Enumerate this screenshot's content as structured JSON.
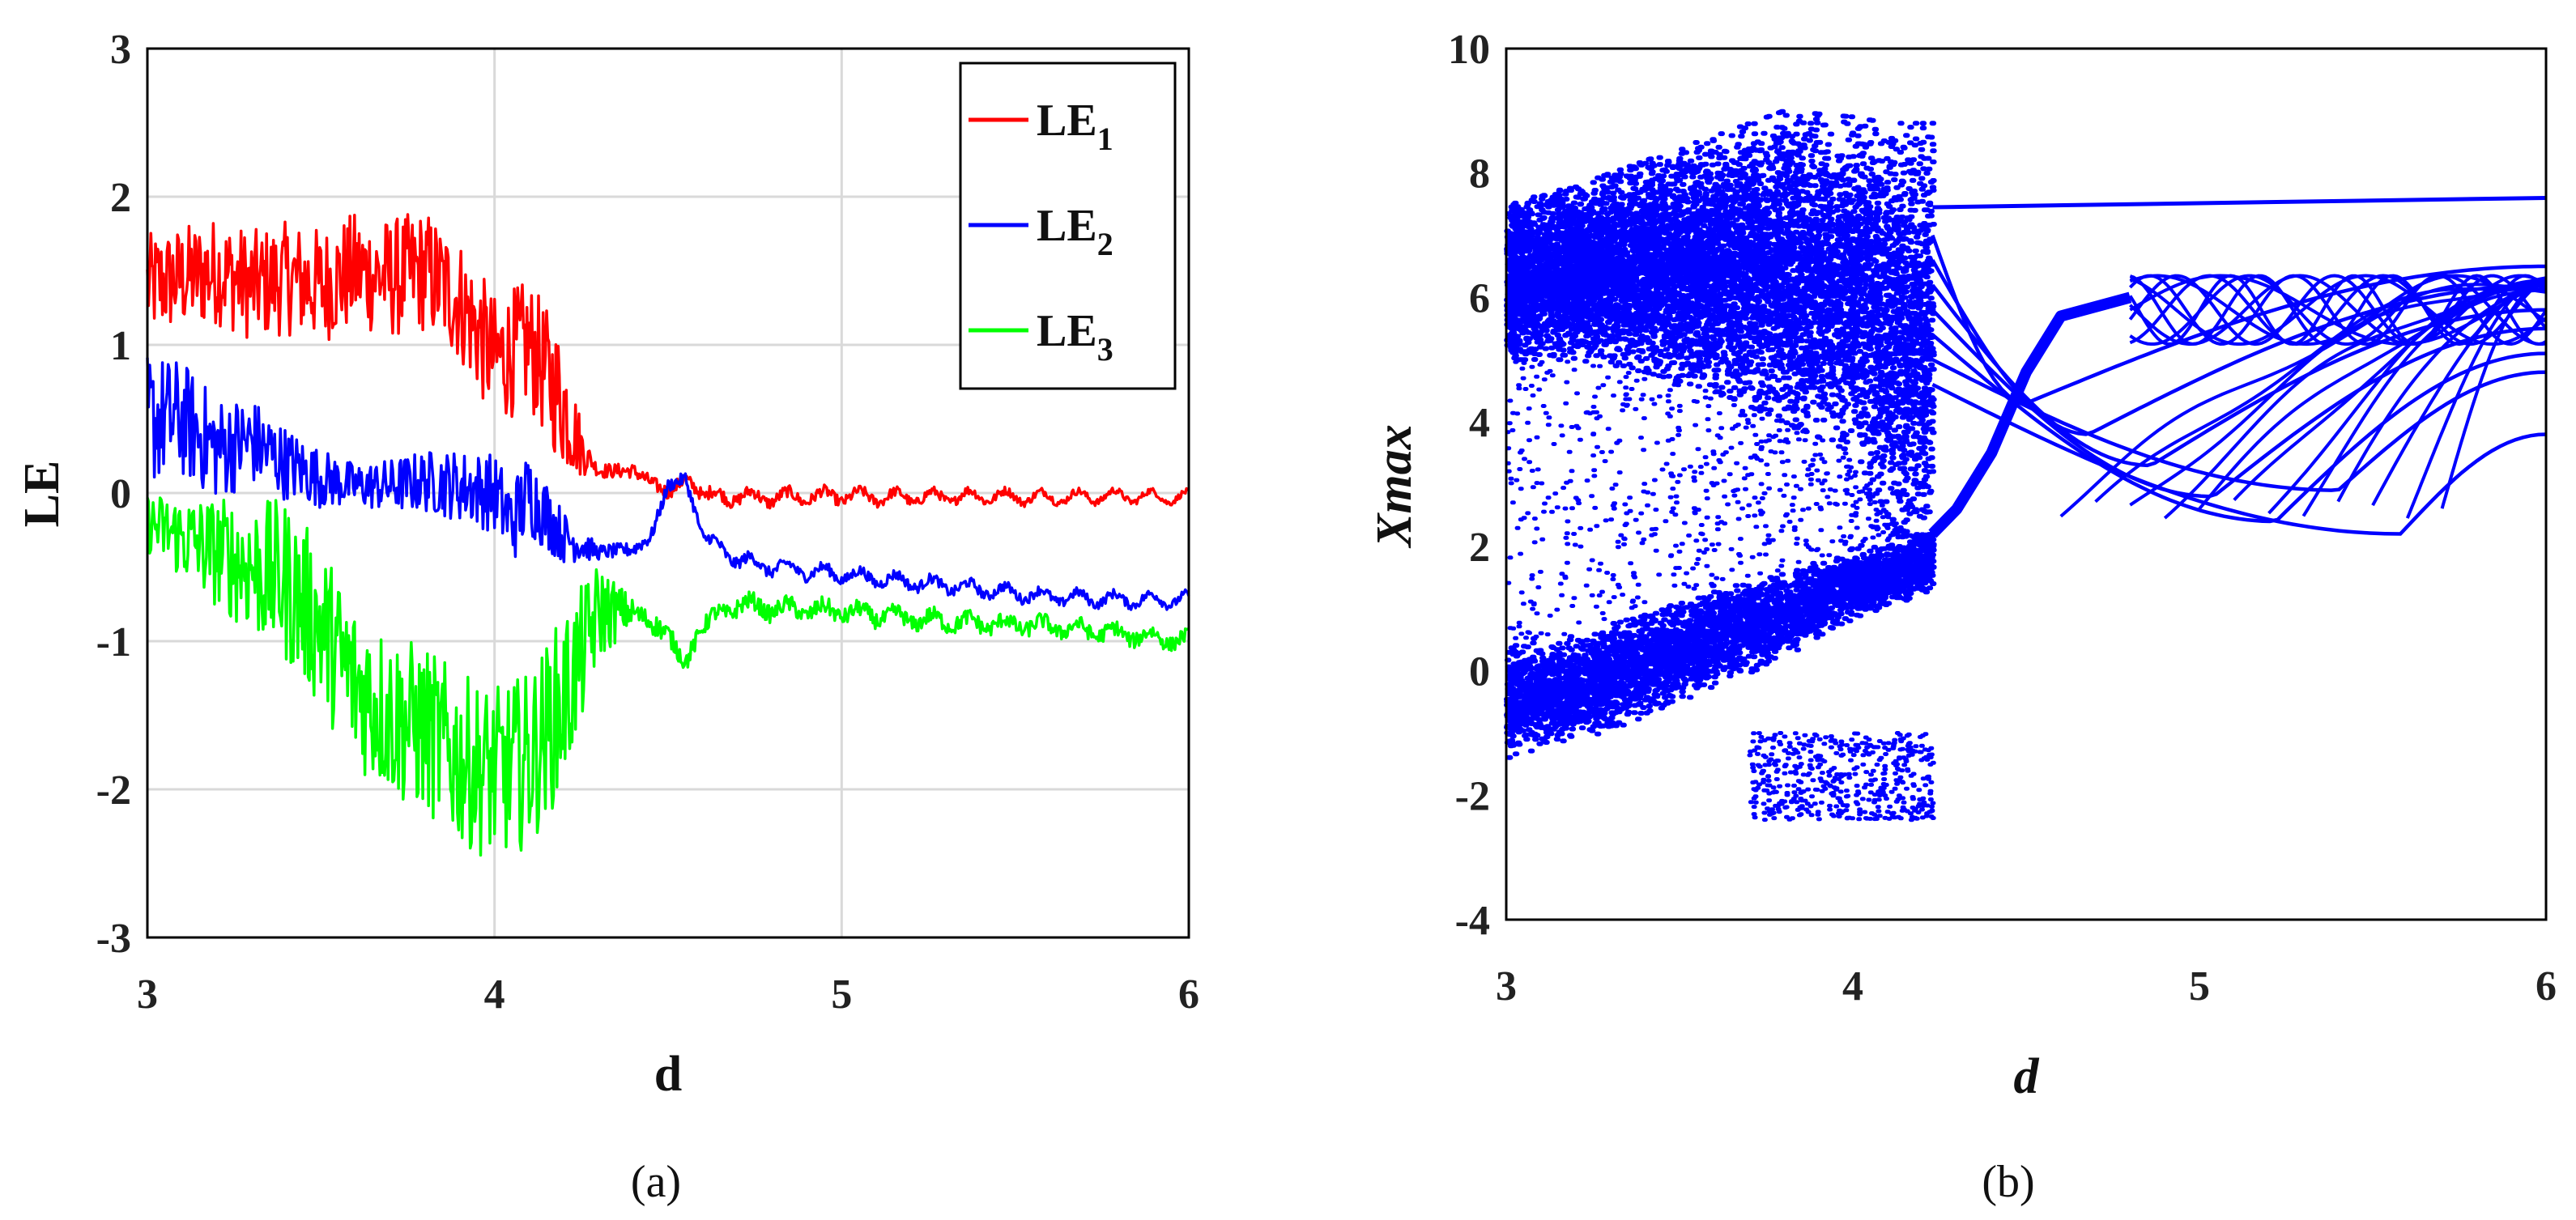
{
  "chart_data": [
    {
      "panel": "(a)",
      "type": "line",
      "title": "",
      "xlabel": "d",
      "ylabel": "LE",
      "xlim": [
        3,
        6
      ],
      "ylim": [
        -3,
        3
      ],
      "xticks": [
        "3",
        "4",
        "5",
        "6"
      ],
      "yticks": [
        "-3",
        "-2",
        "-1",
        "0",
        "1",
        "2",
        "3"
      ],
      "grid": true,
      "legend_position": "top-right",
      "series": [
        {
          "name": "LE1",
          "label_main": "LE",
          "label_sub": "1",
          "color": "#ff0000",
          "x": [
            3.0,
            3.1,
            3.2,
            3.3,
            3.4,
            3.5,
            3.6,
            3.7,
            3.8,
            3.9,
            4.0,
            4.1,
            4.2,
            4.25,
            4.3,
            4.4,
            4.5,
            4.55,
            4.6,
            4.8,
            5.0,
            5.2,
            5.4,
            5.6,
            5.8,
            6.0
          ],
          "values": [
            1.4,
            1.45,
            1.5,
            1.4,
            1.45,
            1.4,
            1.5,
            1.45,
            1.5,
            1.3,
            0.9,
            1.0,
            0.6,
            0.3,
            0.15,
            0.15,
            0.0,
            0.1,
            -0.02,
            -0.03,
            -0.02,
            -0.03,
            -0.02,
            -0.03,
            -0.02,
            -0.03
          ]
        },
        {
          "name": "LE2",
          "label_main": "LE",
          "label_sub": "2",
          "color": "#0000ff",
          "x": [
            3.0,
            3.1,
            3.2,
            3.3,
            3.4,
            3.5,
            3.6,
            3.7,
            3.8,
            3.9,
            4.0,
            4.05,
            4.1,
            4.2,
            4.3,
            4.4,
            4.45,
            4.5,
            4.55,
            4.6,
            4.7,
            4.8,
            5.0,
            5.2,
            5.4,
            5.6,
            5.8,
            6.0
          ],
          "values": [
            0.5,
            0.5,
            0.3,
            0.35,
            0.2,
            0.1,
            0.05,
            0.05,
            0.08,
            0.05,
            0.0,
            -0.2,
            0.0,
            -0.3,
            -0.4,
            -0.38,
            -0.3,
            0.05,
            0.1,
            -0.3,
            -0.45,
            -0.5,
            -0.55,
            -0.6,
            -0.65,
            -0.7,
            -0.72,
            -0.72
          ]
        },
        {
          "name": "LE3",
          "label_main": "LE",
          "label_sub": "3",
          "color": "#00ff00",
          "x": [
            3.0,
            3.1,
            3.2,
            3.3,
            3.4,
            3.5,
            3.6,
            3.7,
            3.8,
            3.9,
            4.0,
            4.1,
            4.2,
            4.3,
            4.4,
            4.5,
            4.55,
            4.6,
            4.7,
            4.8,
            5.0,
            5.2,
            5.4,
            5.6,
            5.8,
            6.0
          ],
          "values": [
            -0.2,
            -0.3,
            -0.4,
            -0.5,
            -0.6,
            -0.9,
            -1.3,
            -1.5,
            -1.6,
            -1.8,
            -1.9,
            -1.8,
            -1.4,
            -0.8,
            -0.8,
            -0.95,
            -1.15,
            -0.9,
            -0.75,
            -0.78,
            -0.8,
            -0.85,
            -0.88,
            -0.9,
            -0.95,
            -1.0
          ]
        }
      ]
    },
    {
      "panel": "(b)",
      "type": "scatter",
      "title": "",
      "xlabel": "d",
      "ylabel": "Xmax",
      "xlim": [
        3,
        6
      ],
      "ylim": [
        -4,
        10
      ],
      "xticks": [
        "3",
        "4",
        "5",
        "6"
      ],
      "yticks": [
        "-4",
        "-2",
        "0",
        "2",
        "4",
        "6",
        "8",
        "10"
      ],
      "grid": false,
      "color": "#0000ff",
      "chaotic_region": {
        "d_range": [
          3.0,
          4.23
        ],
        "upper_band_x": [
          3.0,
          3.2,
          3.4,
          3.6,
          3.8,
          4.0,
          4.1,
          4.2
        ],
        "upper_band_min": [
          5.0,
          5.0,
          4.8,
          4.5,
          4.0,
          3.5,
          2.5,
          2.0
        ],
        "upper_band_max": [
          7.5,
          7.8,
          8.2,
          8.6,
          9.0,
          8.9,
          8.8,
          8.8
        ],
        "lower_band_x": [
          3.0,
          3.2,
          3.4,
          3.6,
          3.8,
          4.0,
          4.2
        ],
        "lower_band_min": [
          -1.5,
          -1.2,
          -0.8,
          -0.3,
          0.2,
          0.8,
          1.2
        ],
        "lower_band_max": [
          0.5,
          0.6,
          1.0,
          1.4,
          1.6,
          2.0,
          2.2
        ],
        "cluster_x": [
          3.7,
          4.23
        ],
        "cluster_y": [
          -2.4,
          -1.0
        ]
      },
      "periodic_curves": {
        "top_line": {
          "x": [
            4.23,
            6.0
          ],
          "y": [
            7.45,
            7.6
          ]
        },
        "rise": {
          "x": [
            4.23,
            4.3,
            4.4,
            4.5,
            4.6,
            4.8
          ],
          "y": [
            2.2,
            2.6,
            3.5,
            4.8,
            5.7,
            6.0
          ]
        },
        "fan_start_y": [
          7.0,
          6.6,
          6.2,
          5.8,
          5.4,
          5.0,
          4.6
        ],
        "fan_min_y": [
          4.3,
          3.8,
          3.3,
          2.8,
          2.4,
          2.9,
          2.2
        ],
        "fan_end_y": [
          6.5,
          6.2,
          5.8,
          5.5,
          5.1,
          4.8,
          3.8
        ]
      }
    }
  ],
  "captions": {
    "a": "(a)",
    "b": "(b)"
  }
}
